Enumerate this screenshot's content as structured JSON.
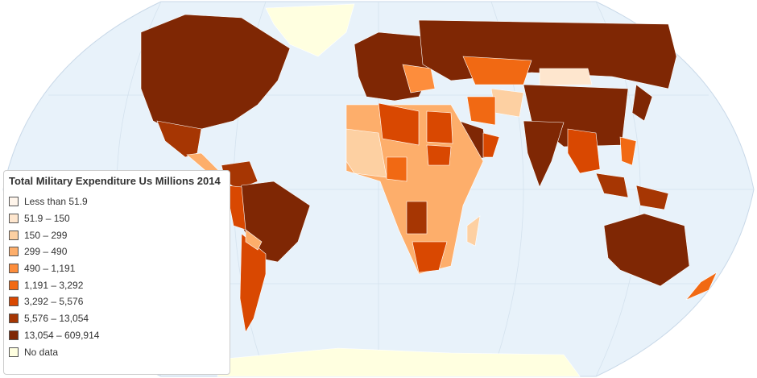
{
  "legend": {
    "title": "Total Military Expenditure Us Millions 2014",
    "items": [
      {
        "label": "Less than 51.9",
        "color": "#fff5eb"
      },
      {
        "label": "51.9 – 150",
        "color": "#fee6ce"
      },
      {
        "label": "150 – 299",
        "color": "#fdd0a2"
      },
      {
        "label": "299 – 490",
        "color": "#fdae6b"
      },
      {
        "label": "490 – 1,191",
        "color": "#fd8d3c"
      },
      {
        "label": "1,191 – 3,292",
        "color": "#f16913"
      },
      {
        "label": "3,292 – 5,576",
        "color": "#d94801"
      },
      {
        "label": "5,576 – 13,054",
        "color": "#a63603"
      },
      {
        "label": "13,054 – 609,914",
        "color": "#7f2704"
      },
      {
        "label": "No data",
        "color": "#ffffe0"
      }
    ]
  }
}
